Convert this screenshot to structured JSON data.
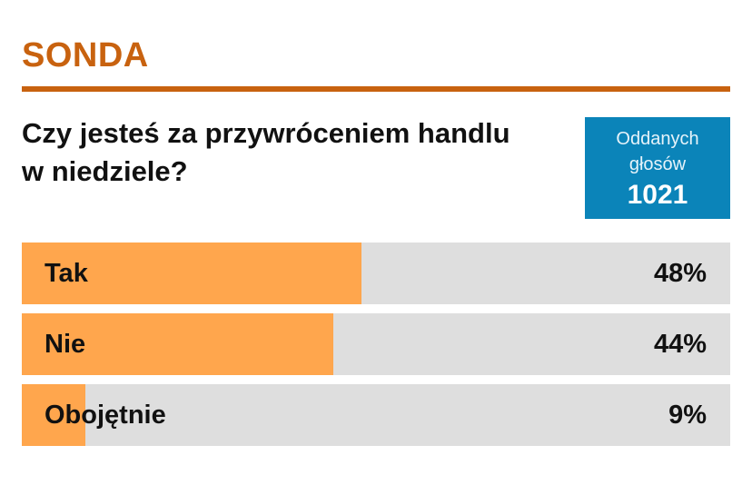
{
  "poll": {
    "title": "SONDA",
    "question": "Czy jesteś za przywróceniem handlu w niedziele?",
    "votes_label": "Oddanych głosów",
    "votes_count": "1021",
    "options": [
      {
        "label": "Tak",
        "percent_text": "48%",
        "percent": 48
      },
      {
        "label": "Nie",
        "percent_text": "44%",
        "percent": 44
      },
      {
        "label": "Obojętnie",
        "percent_text": "9%",
        "percent": 9
      }
    ]
  },
  "colors": {
    "accent": "#c8620f",
    "bar_fill": "#ffa64d",
    "bar_track": "#dedede",
    "votes_box": "#0b84b9"
  }
}
